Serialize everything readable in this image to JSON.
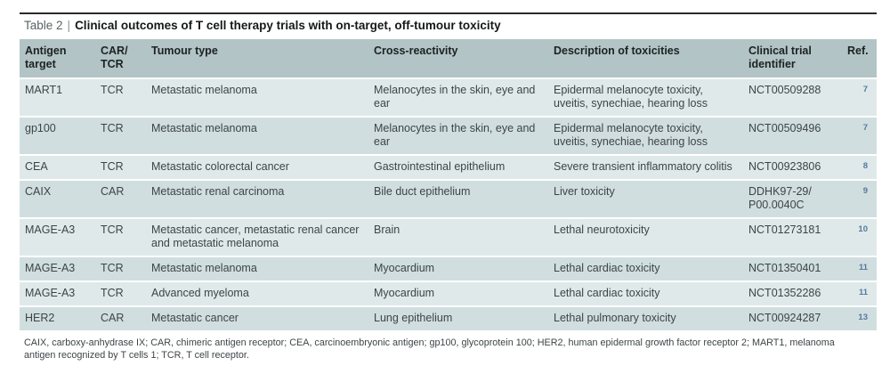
{
  "table": {
    "label": "Table 2",
    "separator": "|",
    "title": "Clinical outcomes of T cell therapy trials with on-target, off-tumour toxicity",
    "columns": [
      "Antigen target",
      "CAR/ TCR",
      "Tumour type",
      "Cross-reactivity",
      "Description of toxicities",
      "Clinical trial identifier",
      "Ref."
    ],
    "rows": [
      {
        "antigen": "MART1",
        "receptor": "TCR",
        "tumour_type": "Metastatic melanoma",
        "cross_reactivity": "Melanocytes in the skin, eye and ear",
        "toxicities": "Epidermal melanocyte toxicity, uveitis, synechiae, hearing loss",
        "trial_identifier": "NCT00509288",
        "ref": "7"
      },
      {
        "antigen": "gp100",
        "receptor": "TCR",
        "tumour_type": "Metastatic melanoma",
        "cross_reactivity": "Melanocytes in the skin, eye and ear",
        "toxicities": "Epidermal melanocyte toxicity, uveitis, synechiae, hearing loss",
        "trial_identifier": "NCT00509496",
        "ref": "7"
      },
      {
        "antigen": "CEA",
        "receptor": "TCR",
        "tumour_type": "Metastatic colorectal cancer",
        "cross_reactivity": "Gastrointestinal epithelium",
        "toxicities": "Severe transient inflammatory colitis",
        "trial_identifier": "NCT00923806",
        "ref": "8"
      },
      {
        "antigen": "CAIX",
        "receptor": "CAR",
        "tumour_type": "Metastatic renal carcinoma",
        "cross_reactivity": "Bile duct epithelium",
        "toxicities": "Liver toxicity",
        "trial_identifier": "DDHK97-29/ P00.0040C",
        "ref": "9"
      },
      {
        "antigen": "MAGE-A3",
        "receptor": "TCR",
        "tumour_type": "Metastatic cancer, metastatic renal cancer and metastatic melanoma",
        "cross_reactivity": "Brain",
        "toxicities": "Lethal neurotoxicity",
        "trial_identifier": "NCT01273181",
        "ref": "10"
      },
      {
        "antigen": "MAGE-A3",
        "receptor": "TCR",
        "tumour_type": "Metastatic melanoma",
        "cross_reactivity": "Myocardium",
        "toxicities": "Lethal cardiac toxicity",
        "trial_identifier": "NCT01350401",
        "ref": "11"
      },
      {
        "antigen": "MAGE-A3",
        "receptor": "TCR",
        "tumour_type": "Advanced myeloma",
        "cross_reactivity": "Myocardium",
        "toxicities": "Lethal cardiac toxicity",
        "trial_identifier": "NCT01352286",
        "ref": "11"
      },
      {
        "antigen": "HER2",
        "receptor": "CAR",
        "tumour_type": "Metastatic cancer",
        "cross_reactivity": "Lung epithelium",
        "toxicities": "Lethal pulmonary toxicity",
        "trial_identifier": "NCT00924287",
        "ref": "13"
      }
    ],
    "footnote": "CAIX, carboxy-anhydrase IX; CAR, chimeric antigen receptor; CEA, carcinoembryonic antigen; gp100, glycoprotein 100; HER2, human epidermal growth factor receptor 2; MART1, melanoma antigen recognized by T cells 1; TCR, T cell receptor."
  },
  "colors": {
    "header_bg": "#b2c4c5",
    "row_light": "#dfe9ea",
    "row_dark": "#d0dedf",
    "ref": "#56799f",
    "rule": "#2a2a2a"
  }
}
